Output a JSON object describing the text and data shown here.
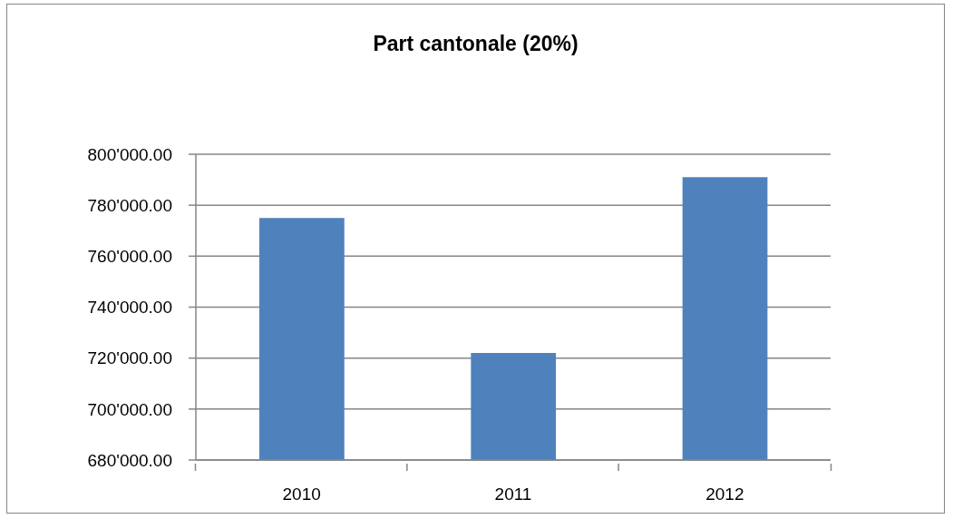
{
  "chart_data": {
    "type": "bar",
    "title": "Part cantonale (20%)",
    "categories": [
      "2010",
      "2011",
      "2012"
    ],
    "values": [
      775000,
      722000,
      791000
    ],
    "color": "#4f81bd",
    "ylim": [
      680000,
      800000
    ],
    "yticks": [
      {
        "value": 680000,
        "label": "680'000.00"
      },
      {
        "value": 700000,
        "label": "700'000.00"
      },
      {
        "value": 720000,
        "label": "720'000.00"
      },
      {
        "value": 740000,
        "label": "740'000.00"
      },
      {
        "value": 760000,
        "label": "760'000.00"
      },
      {
        "value": 780000,
        "label": "780'000.00"
      },
      {
        "value": 800000,
        "label": "800'000.00"
      }
    ],
    "grid": "y"
  }
}
